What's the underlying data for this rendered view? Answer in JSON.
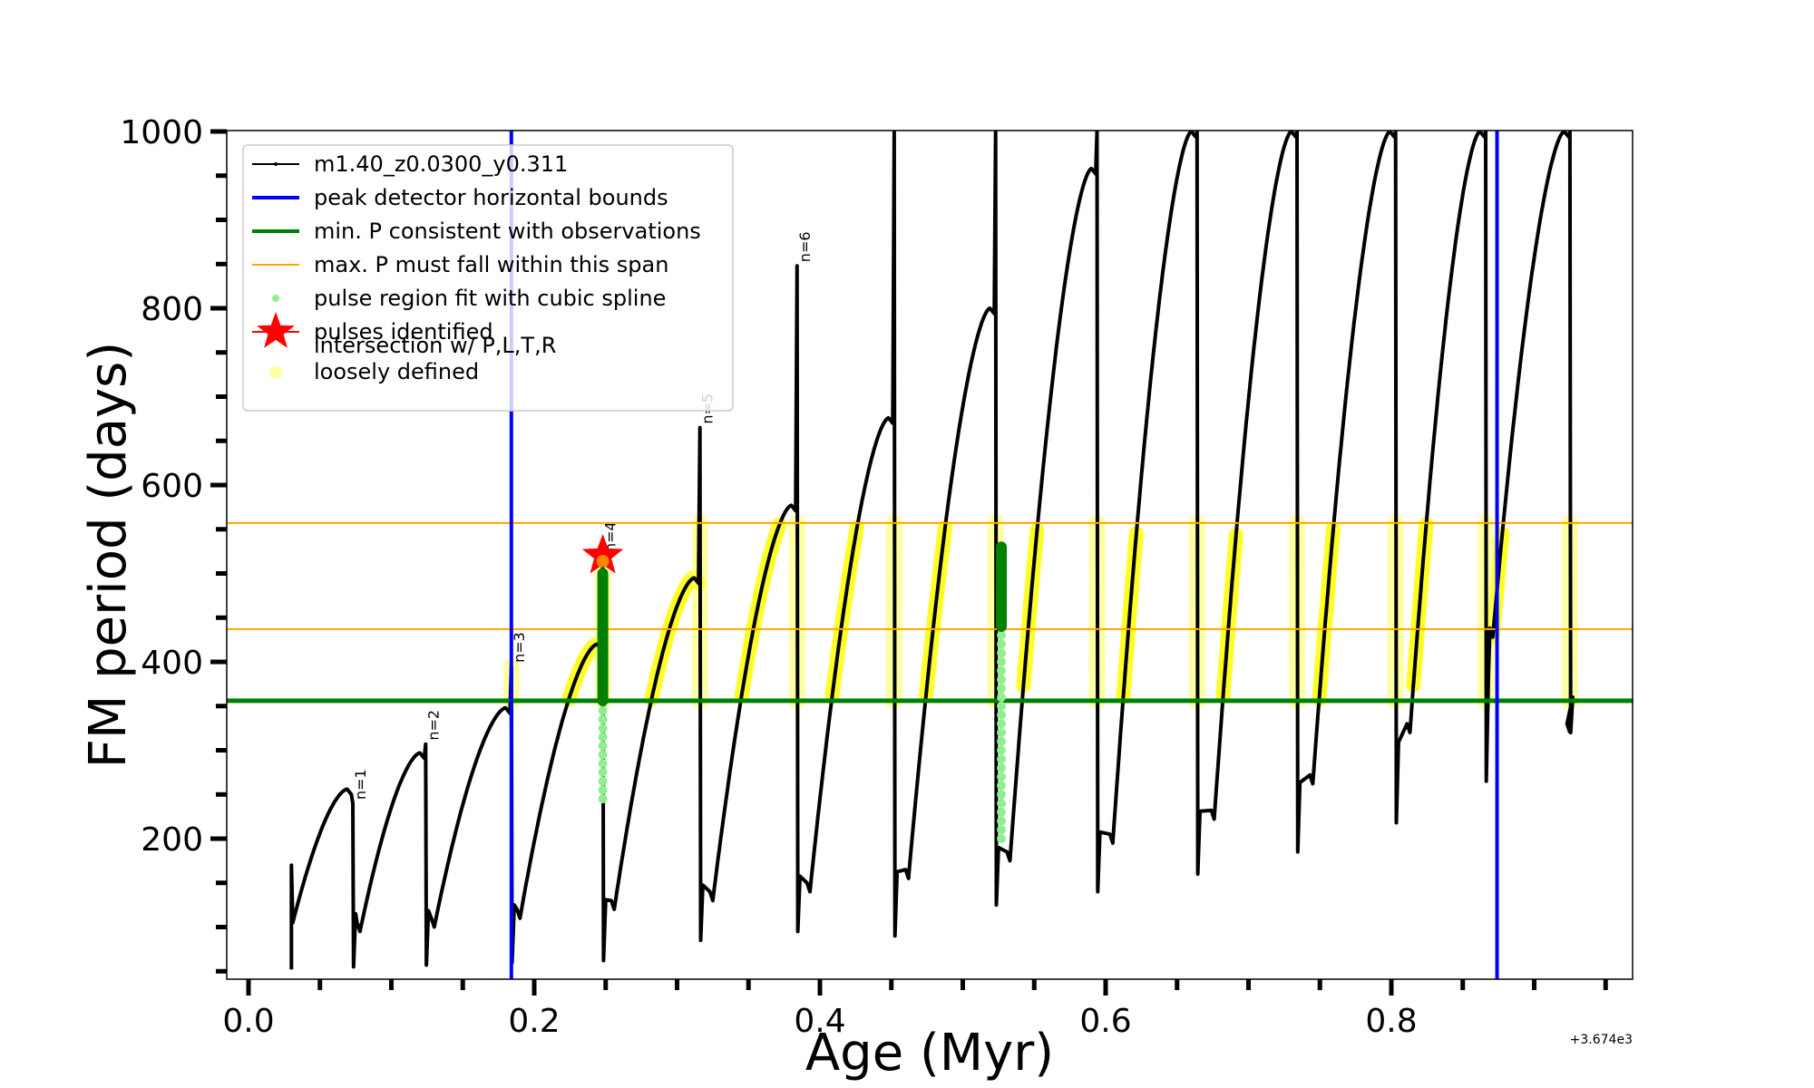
{
  "chart_data": {
    "type": "line",
    "xlabel": "Age (Myr)",
    "ylabel": "FM period (days)",
    "x_offset_text": "+3.674e3",
    "xlim": [
      -0.035,
      0.97
    ],
    "ylim": [
      40,
      1000
    ],
    "x_ticks": [
      {
        "value": 0.0,
        "label": "0.0"
      },
      {
        "value": 0.2,
        "label": "0.2"
      },
      {
        "value": 0.4,
        "label": "0.4"
      },
      {
        "value": 0.6,
        "label": "0.6"
      },
      {
        "value": 0.8,
        "label": "0.8"
      }
    ],
    "x_minor_step": 0.05,
    "y_ticks": [
      {
        "value": 200,
        "label": "200"
      },
      {
        "value": 400,
        "label": "400"
      },
      {
        "value": 600,
        "label": "600"
      },
      {
        "value": 800,
        "label": "800"
      },
      {
        "value": 1000,
        "label": "1000"
      }
    ],
    "y_minor_step": 50,
    "grid": false,
    "legend_position": "upper-left",
    "legend": [
      {
        "label": "m1.40_z0.0300_y0.311",
        "marker": "line-dot",
        "color": "#000000"
      },
      {
        "label": "peak detector horizontal bounds",
        "marker": "line",
        "color": "#0000ff"
      },
      {
        "label": "min. P consistent with observations",
        "marker": "line",
        "color": "#008000"
      },
      {
        "label": "max. P must fall within this span",
        "marker": "line-thin",
        "color": "#ffa500"
      },
      {
        "label": "pulse region fit with cubic spline",
        "marker": "dot",
        "color": "#90ee90"
      },
      {
        "label": "pulses identified",
        "marker": "star",
        "color": "#ff0000"
      },
      {
        "label": "intersection w/ P,L,T,R\nloosely defined",
        "marker": "circle",
        "color": "#ffff99"
      }
    ],
    "reference_lines": {
      "peak_detector_bounds_x": [
        0.184,
        0.874
      ],
      "min_P": 356,
      "max_P_span": [
        437,
        557
      ]
    },
    "series": [
      {
        "name": "m1.40_z0.0300_y0.311",
        "color": "#000000",
        "start": {
          "x": 0.03,
          "y_low": 52,
          "y_spike": 170,
          "y_start": 105
        },
        "pulses": [
          {
            "label": "n=1",
            "x": 0.073,
            "peak": 256,
            "spike": 240,
            "drop": 55,
            "min": 95,
            "min_x": 0.078
          },
          {
            "label": "n=2",
            "x": 0.124,
            "peak": 297,
            "spike": 307,
            "drop": 57,
            "min": 100,
            "min_x": 0.13
          },
          {
            "label": "n=3",
            "x": 0.184,
            "peak": 348,
            "spike": 395,
            "drop": 60,
            "min": 110,
            "min_x": 0.19
          },
          {
            "label": "n=4",
            "x": 0.248,
            "peak": 420,
            "spike": 520,
            "drop": 62,
            "min": 120,
            "min_x": 0.256
          },
          {
            "label": "n=5",
            "x": 0.316,
            "peak": 495,
            "spike": 665,
            "drop": 85,
            "min": 130,
            "min_x": 0.325
          },
          {
            "label": "n=6",
            "x": 0.384,
            "peak": 577,
            "spike": 848,
            "drop": 95,
            "min": 140,
            "min_x": 0.393
          },
          {
            "label": "",
            "x": 0.452,
            "peak": 676,
            "spike": 1000,
            "drop": 90,
            "min": 155,
            "min_x": 0.462
          },
          {
            "label": "",
            "x": 0.523,
            "peak": 800,
            "spike": 1000,
            "drop": 125,
            "min": 175,
            "min_x": 0.533
          },
          {
            "label": "",
            "x": 0.594,
            "peak": 958,
            "spike": 1000,
            "drop": 140,
            "min": 195,
            "min_x": 0.605
          },
          {
            "label": "",
            "x": 0.664,
            "peak": 1000,
            "spike": 1000,
            "drop": 160,
            "min": 222,
            "min_x": 0.676
          },
          {
            "label": "",
            "x": 0.734,
            "peak": 1000,
            "spike": 1000,
            "drop": 185,
            "min": 262,
            "min_x": 0.745
          },
          {
            "label": "",
            "x": 0.803,
            "peak": 1000,
            "spike": 1000,
            "drop": 218,
            "min": 320,
            "min_x": 0.813
          },
          {
            "label": "",
            "x": 0.866,
            "peak": 1000,
            "spike": 1000,
            "drop": 265,
            "min": 428,
            "min_x": 0.871
          },
          {
            "label": "",
            "x": 0.925,
            "peak": 1000,
            "spike": 1000,
            "drop": 320,
            "min": 320,
            "min_x": 0.925
          }
        ]
      }
    ],
    "pulse_region_fit": [
      {
        "x": 0.248,
        "y_from": 245,
        "y_to": 500,
        "dense_from": 356,
        "dense_to": 500
      },
      {
        "x": 0.527,
        "y_from": 200,
        "y_to": 530,
        "dense_from": 440,
        "dense_to": 530
      }
    ],
    "pulses_identified": [
      {
        "x": 0.248,
        "y": 520
      }
    ]
  }
}
